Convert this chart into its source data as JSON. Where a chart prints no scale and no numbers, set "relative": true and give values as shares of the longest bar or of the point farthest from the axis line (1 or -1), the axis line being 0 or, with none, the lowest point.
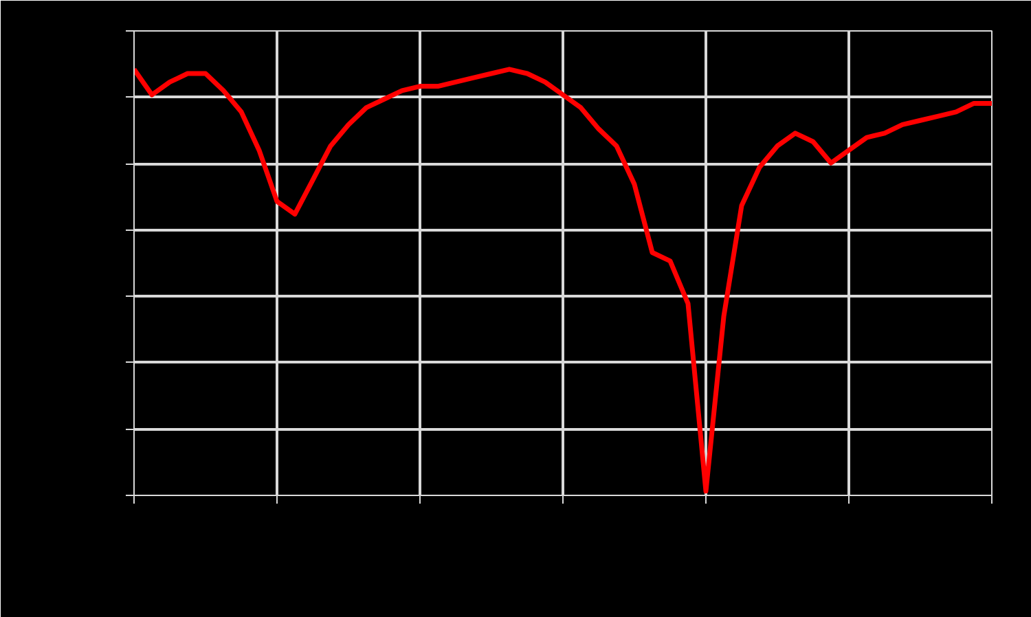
{
  "chart_data": {
    "type": "line",
    "relative": true,
    "categories": [
      null,
      null,
      null,
      null,
      null,
      null,
      null,
      null,
      null,
      null,
      null,
      null,
      null,
      null,
      null,
      null,
      null,
      null,
      null,
      null,
      null,
      null,
      null,
      null,
      null,
      null,
      null,
      null,
      null,
      null,
      null,
      null,
      null,
      null,
      null,
      null,
      null,
      null,
      null,
      null,
      null,
      null,
      null,
      null,
      null,
      null,
      null,
      null,
      null
    ],
    "series": [
      {
        "color": "#ff0000",
        "values": [
          1.0,
          0.94,
          0.97,
          0.99,
          0.99,
          0.95,
          0.9,
          0.81,
          0.69,
          0.66,
          0.74,
          0.82,
          0.87,
          0.91,
          0.93,
          0.95,
          0.96,
          0.96,
          0.97,
          0.98,
          0.99,
          1.0,
          0.99,
          0.97,
          0.94,
          0.91,
          0.86,
          0.82,
          0.73,
          0.57,
          0.55,
          0.45,
          0.01,
          0.42,
          0.68,
          0.77,
          0.82,
          0.85,
          0.83,
          0.78,
          0.81,
          0.84,
          0.85,
          0.87,
          0.88,
          0.89,
          0.9,
          0.92,
          0.92
        ]
      }
    ],
    "grid": true,
    "tick_labels": false
  }
}
